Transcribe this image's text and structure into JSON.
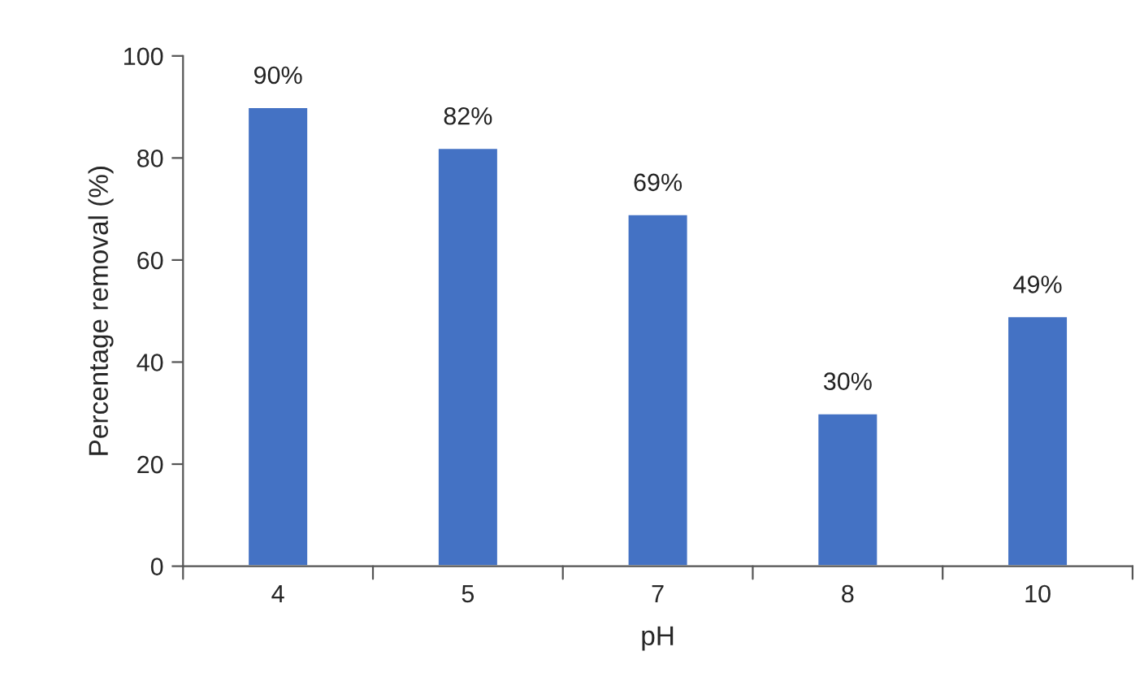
{
  "chart_data": {
    "type": "bar",
    "xlabel": "pH",
    "ylabel": "Percentage removal (%)",
    "categories": [
      "4",
      "5",
      "7",
      "8",
      "10"
    ],
    "values": [
      90,
      82,
      69,
      30,
      49
    ],
    "value_labels": [
      "90%",
      "82%",
      "69%",
      "30%",
      "49%"
    ],
    "color": "#4472c4",
    "ylim": [
      0,
      100
    ],
    "yticks": [
      0,
      20,
      40,
      60,
      80,
      100
    ],
    "grid": false,
    "legend": false
  }
}
